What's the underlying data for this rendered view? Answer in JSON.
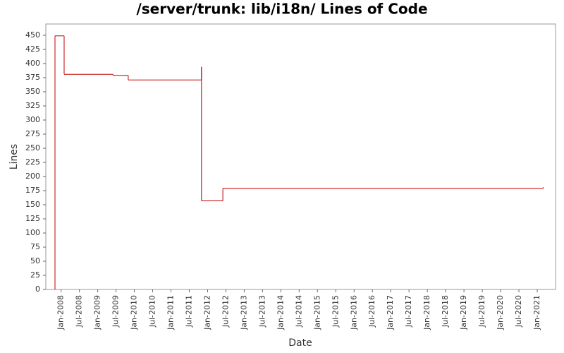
{
  "chart_data": {
    "type": "step",
    "title": "/server/trunk: lib/i18n/ Lines of Code",
    "x_label": "Date",
    "y_label": "Lines",
    "series": [
      {
        "name": "Lines",
        "color": "#c00000",
        "x": [
          "2007-11",
          "2007-11",
          "2008-02",
          "2009-06",
          "2009-11",
          "2011-11",
          "2011-11",
          "2012-06",
          "2012-06",
          "2021-03"
        ],
        "values": [
          0,
          449,
          381,
          379,
          371,
          394,
          157,
          177,
          179,
          181
        ]
      }
    ],
    "xlim": [
      "2007-08",
      "2021-07"
    ],
    "xticks": [
      {
        "value": "2008-01",
        "label": "Jan-2008"
      },
      {
        "value": "2008-07",
        "label": "Jul-2008"
      },
      {
        "value": "2009-01",
        "label": "Jan-2009"
      },
      {
        "value": "2009-07",
        "label": "Jul-2009"
      },
      {
        "value": "2010-01",
        "label": "Jan-2010"
      },
      {
        "value": "2010-07",
        "label": "Jul-2010"
      },
      {
        "value": "2011-01",
        "label": "Jan-2011"
      },
      {
        "value": "2011-07",
        "label": "Jul-2011"
      },
      {
        "value": "2012-01",
        "label": "Jan-2012"
      },
      {
        "value": "2012-07",
        "label": "Jul-2012"
      },
      {
        "value": "2013-01",
        "label": "Jan-2013"
      },
      {
        "value": "2013-07",
        "label": "Jul-2013"
      },
      {
        "value": "2014-01",
        "label": "Jan-2014"
      },
      {
        "value": "2014-07",
        "label": "Jul-2014"
      },
      {
        "value": "2015-01",
        "label": "Jan-2015"
      },
      {
        "value": "2015-07",
        "label": "Jul-2015"
      },
      {
        "value": "2016-01",
        "label": "Jan-2016"
      },
      {
        "value": "2016-07",
        "label": "Jul-2016"
      },
      {
        "value": "2017-01",
        "label": "Jan-2017"
      },
      {
        "value": "2017-07",
        "label": "Jul-2017"
      },
      {
        "value": "2018-01",
        "label": "Jan-2018"
      },
      {
        "value": "2018-07",
        "label": "Jul-2018"
      },
      {
        "value": "2019-01",
        "label": "Jan-2019"
      },
      {
        "value": "2019-07",
        "label": "Jul-2019"
      },
      {
        "value": "2020-01",
        "label": "Jan-2020"
      },
      {
        "value": "2020-07",
        "label": "Jul-2020"
      },
      {
        "value": "2021-01",
        "label": "Jan-2021"
      }
    ],
    "ylim": [
      0,
      470
    ],
    "yticks": [
      0,
      25,
      50,
      75,
      100,
      125,
      150,
      175,
      200,
      225,
      250,
      275,
      300,
      325,
      350,
      375,
      400,
      425,
      450
    ],
    "grid": false
  }
}
